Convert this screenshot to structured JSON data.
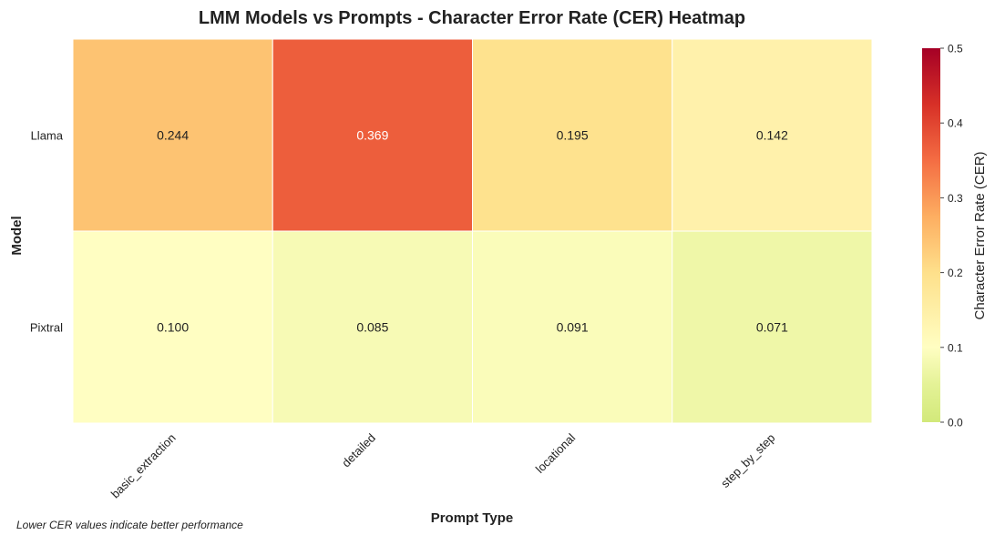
{
  "chart_data": {
    "type": "heatmap",
    "title": "LMM Models vs Prompts - Character Error Rate (CER) Heatmap",
    "xlabel": "Prompt Type",
    "ylabel": "Model",
    "x_categories": [
      "basic_extraction",
      "detailed",
      "locational",
      "step_by_step"
    ],
    "y_categories": [
      "Llama",
      "Pixtral"
    ],
    "values": [
      [
        0.244,
        0.369,
        0.195,
        0.142
      ],
      [
        0.1,
        0.085,
        0.091,
        0.071
      ]
    ],
    "value_labels": [
      [
        "0.244",
        "0.369",
        "0.195",
        "0.142"
      ],
      [
        "0.100",
        "0.085",
        "0.091",
        "0.071"
      ]
    ],
    "colorbar": {
      "label": "Character Error Rate (CER)",
      "range": [
        0.0,
        0.5
      ],
      "ticks": [
        0.0,
        0.1,
        0.2,
        0.3,
        0.4,
        0.5
      ],
      "tick_labels": [
        "0.0",
        "0.1",
        "0.2",
        "0.3",
        "0.4",
        "0.5"
      ],
      "colormap": "RdYlGn_r (reversed, lower half truncated)",
      "stops": [
        "#d7ec7c",
        "#fffec2",
        "#fee08b",
        "#fdae61",
        "#f46d43",
        "#d73027",
        "#a50026"
      ]
    },
    "footnote": "Lower CER values indicate better performance",
    "grid": false,
    "legend": "colorbar-right"
  }
}
